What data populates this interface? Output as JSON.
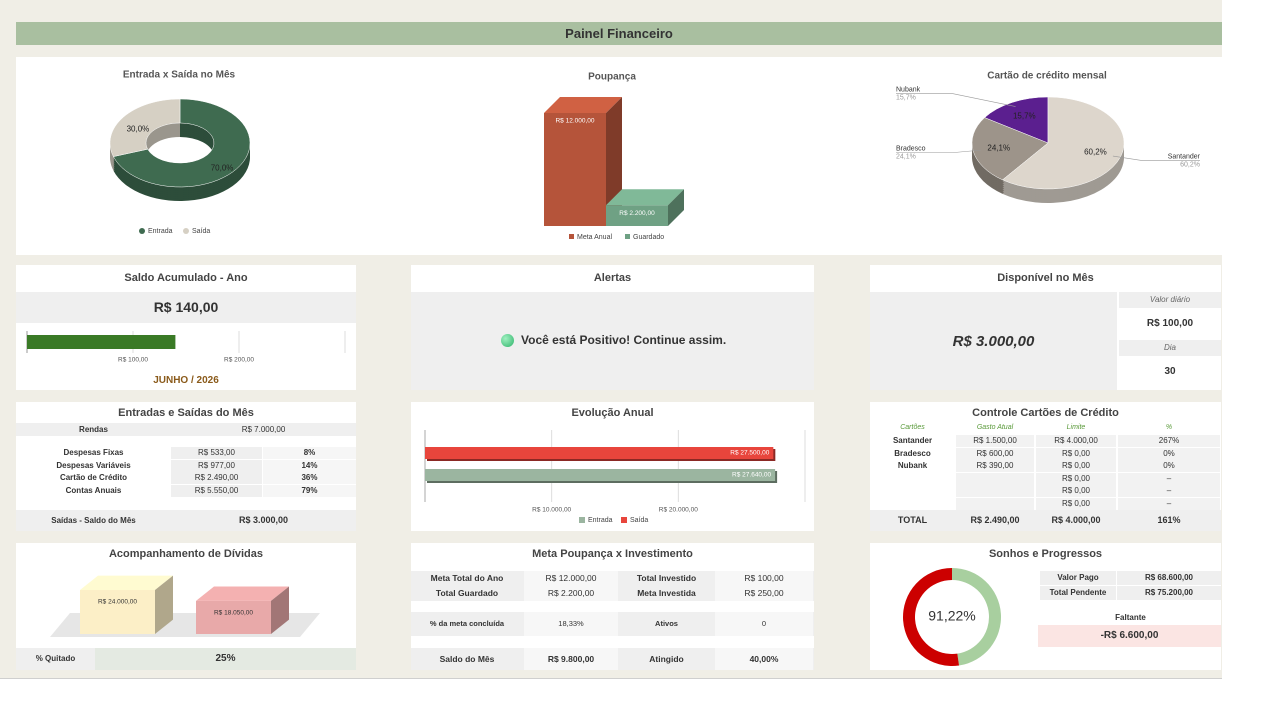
{
  "header": {
    "title": "Painel Financeiro"
  },
  "chart_data": [
    {
      "type": "donut",
      "title": "Entrada x Saída no Mês",
      "categories": [
        "Entrada",
        "Saída"
      ],
      "values": [
        70,
        30
      ],
      "value_labels": [
        "70,0%",
        "30,0%"
      ],
      "colors": [
        "#3f6b50",
        "#d6d0c4"
      ],
      "legend": "bottom"
    },
    {
      "type": "bar",
      "title": "Poupança",
      "series": [
        {
          "name": "Meta Anual",
          "color": "#b5543a",
          "values": [
            12000
          ],
          "value_labels": [
            "R$ 12.000,00"
          ]
        },
        {
          "name": "Guardado",
          "color": "#6fa184",
          "values": [
            2200
          ],
          "value_labels": [
            "R$ 2.200,00"
          ]
        }
      ],
      "legend": "bottom"
    },
    {
      "type": "pie",
      "title": "Cartão de crédito mensal",
      "categories": [
        "Nubank",
        "Bradesco",
        "Santander"
      ],
      "values": [
        15.7,
        24.1,
        60.2
      ],
      "value_labels": [
        "15,7%",
        "24,1%",
        "60,2%"
      ],
      "colors": [
        "#5b1f8f",
        "#9d948a",
        "#ddd6cc"
      ]
    },
    {
      "type": "progress",
      "title": "Saldo Acumulado - Ano",
      "subtitle": "JUNHO / 2026",
      "values": [
        140
      ],
      "value_labels": [
        "R$ 140,00"
      ],
      "color": "#3a7a26",
      "xlim": [
        0,
        300
      ],
      "xticks": [
        {
          "value": 100,
          "label": "R$ 100,00"
        },
        {
          "value": 200,
          "label": "R$ 200,00"
        }
      ]
    },
    {
      "type": "hbar",
      "title": "Evolução Anual",
      "series": [
        {
          "name": "Entrada",
          "color": "#9bb5a0",
          "values": [
            27640
          ],
          "value_labels": [
            "R$ 27.640,00"
          ]
        },
        {
          "name": "Saída",
          "color": "#e8453c",
          "values": [
            27500
          ],
          "value_labels": [
            "R$ 27.500,00"
          ]
        }
      ],
      "xlim": [
        0,
        30000
      ],
      "xticks": [
        {
          "value": 10000,
          "label": "R$ 10.000,00"
        },
        {
          "value": 20000,
          "label": "R$ 20.000,00"
        }
      ],
      "grid": true,
      "legend": "bottom"
    },
    {
      "type": "box3d",
      "title": "Acompanhamento de Dívidas",
      "values": [
        24000,
        18050
      ],
      "value_labels": [
        "R$ 24.000,00",
        "R$ 18.050,00"
      ],
      "colors": [
        "#fcefc7",
        "#e8a9a9"
      ]
    },
    {
      "type": "ring",
      "title": "Sonhos e Progressos",
      "categories": [
        "Valor Pago",
        "Total Pendente"
      ],
      "values": [
        68600,
        75200
      ],
      "value_labels": [
        "R$ 68.600,00",
        "R$ 75.200,00"
      ],
      "colors": [
        "#a8cf9f",
        "#cc0000"
      ],
      "center_label": "91,22%"
    }
  ],
  "panels": {
    "dividas": {
      "label": "% Quitado",
      "value": "25%"
    },
    "alertas": {
      "title": "Alertas",
      "message": "Você está Positivo! Continue assim."
    },
    "disponivel": {
      "title": "Disponível no Mês",
      "value": "R$ 3.000,00",
      "daily_label": "Valor diário",
      "daily_value": "R$ 100,00",
      "day_label": "Dia",
      "day_value": "30"
    },
    "entradas_saidas": {
      "title": "Entradas e Saídas do Mês",
      "rendas": [
        "Rendas",
        "R$ 7.000,00"
      ],
      "rows": [
        [
          "Despesas Fixas",
          "R$ 533,00",
          "8%"
        ],
        [
          "Despesas Variáveis",
          "R$ 977,00",
          "14%"
        ],
        [
          "Cartão de Crédito",
          "R$ 2.490,00",
          "36%"
        ],
        [
          "Contas Anuais",
          "R$ 5.550,00",
          "79%"
        ]
      ],
      "footer": [
        "Saídas - Saldo do Mês",
        "R$ 3.000,00"
      ]
    },
    "cartoes": {
      "title": "Controle Cartões de Crédito",
      "header": [
        "Cartões",
        "Gasto Atual",
        "Limite",
        "%"
      ],
      "rows": [
        [
          "Santander",
          "R$ 1.500,00",
          "R$ 4.000,00",
          "267%"
        ],
        [
          "Bradesco",
          "R$ 600,00",
          "R$ 0,00",
          "0%"
        ],
        [
          "Nubank",
          "R$ 390,00",
          "R$ 0,00",
          "0%"
        ],
        [
          null,
          null,
          "R$ 0,00",
          "–"
        ],
        [
          null,
          null,
          "R$ 0,00",
          "–"
        ],
        [
          null,
          null,
          "R$ 0,00",
          "–"
        ]
      ],
      "footer": [
        "TOTAL",
        "R$ 2.490,00",
        "R$ 4.000,00",
        "161%"
      ]
    },
    "meta": {
      "title": "Meta Poupança x Investimento",
      "rows": [
        [
          "Meta Total do Ano",
          "R$ 12.000,00",
          "Total Investido",
          "R$ 100,00"
        ],
        [
          "Total Guardado",
          "R$ 2.200,00",
          "Meta Investida",
          "R$ 250,00"
        ],
        [
          "% da meta concluída",
          "18,33%",
          "Ativos",
          "0"
        ],
        [
          "Saldo do Mês",
          "R$ 9.800,00",
          "Atingido",
          "40,00%"
        ]
      ]
    },
    "sonhos": {
      "faltante_label": "Faltante",
      "faltante_value": "-R$ 6.600,00"
    }
  }
}
